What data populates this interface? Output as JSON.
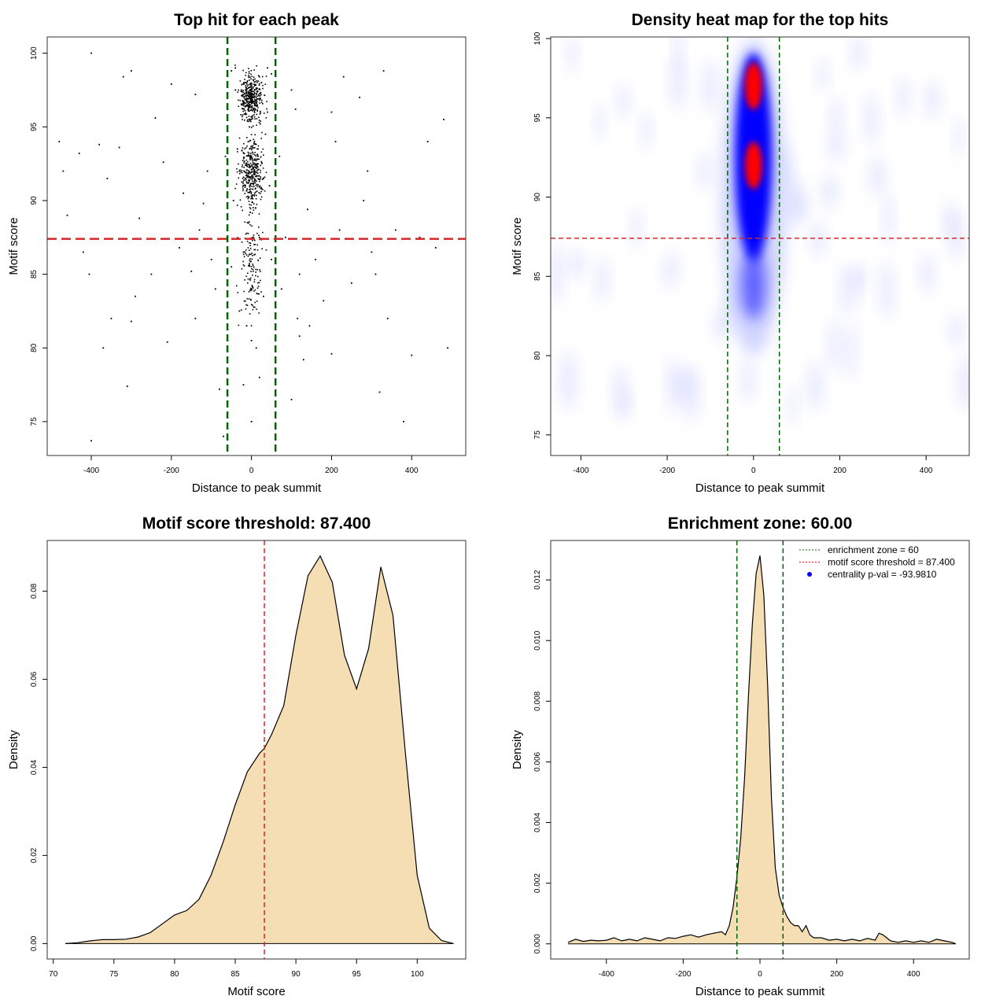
{
  "chart_data": [
    {
      "type": "scatter",
      "title": "Top hit for each peak",
      "xlabel": "Distance to peak summit",
      "ylabel": "Motif score",
      "xlim": [
        -510,
        535
      ],
      "ylim": [
        72.7,
        101.1
      ],
      "xticks": [
        -400,
        -200,
        0,
        200,
        400
      ],
      "yticks": [
        75,
        80,
        85,
        90,
        95,
        100
      ],
      "xtick_labels": [
        "-400",
        "-200",
        "0",
        "200",
        "400"
      ],
      "ytick_labels": [
        "75",
        "80",
        "85",
        "90",
        "95",
        "100"
      ],
      "threshold_score": 87.4,
      "enrichment_zone": [
        -60,
        60
      ],
      "points": [
        [
          -400,
          100
        ],
        [
          -300,
          98.8
        ],
        [
          -320,
          98.4
        ],
        [
          -200,
          97.9
        ],
        [
          -140,
          97.2
        ],
        [
          -40,
          99.0
        ],
        [
          40,
          99.0
        ],
        [
          -480,
          94
        ],
        [
          -470,
          92
        ],
        [
          -460,
          89
        ],
        [
          -430,
          93.2
        ],
        [
          -420,
          86.5
        ],
        [
          -405,
          85
        ],
        [
          -380,
          93.8
        ],
        [
          -360,
          91.5
        ],
        [
          -350,
          82
        ],
        [
          -330,
          93.6
        ],
        [
          -300,
          81.8
        ],
        [
          -290,
          83.5
        ],
        [
          -280,
          88.8
        ],
        [
          -240,
          95.6
        ],
        [
          -220,
          92.6
        ],
        [
          -210,
          80.4
        ],
        [
          -180,
          86.8
        ],
        [
          -150,
          85.2
        ],
        [
          -140,
          82
        ],
        [
          -120,
          89.8
        ],
        [
          -110,
          92
        ],
        [
          -100,
          86
        ],
        [
          -80,
          77.2
        ],
        [
          -70,
          74
        ],
        [
          -400,
          73.7
        ],
        [
          -310,
          77.4
        ],
        [
          -370,
          80
        ],
        [
          100,
          97.5
        ],
        [
          110,
          96.2
        ],
        [
          115,
          82
        ],
        [
          120,
          80.8
        ],
        [
          130,
          79.2
        ],
        [
          140,
          89.4
        ],
        [
          160,
          86
        ],
        [
          180,
          83.2
        ],
        [
          200,
          96
        ],
        [
          210,
          94
        ],
        [
          220,
          88
        ],
        [
          230,
          98.4
        ],
        [
          250,
          84.4
        ],
        [
          270,
          97
        ],
        [
          280,
          90
        ],
        [
          290,
          92
        ],
        [
          300,
          86.5
        ],
        [
          310,
          85
        ],
        [
          320,
          77
        ],
        [
          330,
          98.8
        ],
        [
          340,
          82
        ],
        [
          360,
          88
        ],
        [
          380,
          75
        ],
        [
          400,
          79.5
        ],
        [
          420,
          87.5
        ],
        [
          440,
          94
        ],
        [
          460,
          86.8
        ],
        [
          480,
          95.5
        ],
        [
          490,
          80
        ],
        [
          100,
          76.5
        ],
        [
          200,
          79.6
        ],
        [
          120,
          85
        ],
        [
          145,
          81.5
        ],
        [
          60,
          89
        ],
        [
          75,
          84
        ],
        [
          -60,
          77.8
        ],
        [
          -90,
          84
        ],
        [
          -250,
          85
        ],
        [
          -170,
          90.5
        ],
        [
          -130,
          88
        ],
        [
          -65,
          93
        ],
        [
          70,
          93
        ],
        [
          85,
          87.5
        ],
        [
          50,
          86
        ],
        [
          -50,
          85.5
        ],
        [
          20,
          78
        ],
        [
          -20,
          77.5
        ],
        [
          0,
          75
        ],
        [
          0,
          80.5
        ],
        [
          -30,
          82.5
        ],
        [
          30,
          83.5
        ],
        [
          -15,
          91
        ],
        [
          15,
          92.5
        ],
        [
          -5,
          95
        ],
        [
          5,
          97
        ],
        [
          -25,
          96.5
        ],
        [
          25,
          98
        ],
        [
          -10,
          88.5
        ],
        [
          10,
          89.5
        ],
        [
          -35,
          93.5
        ],
        [
          35,
          94.5
        ],
        [
          -45,
          90
        ],
        [
          45,
          91
        ],
        [
          -20,
          86.5
        ],
        [
          20,
          87.5
        ],
        [
          0,
          84
        ],
        [
          -12,
          81.5
        ],
        [
          12,
          80
        ],
        [
          -40,
          97.5
        ],
        [
          40,
          96
        ],
        [
          -30,
          92
        ],
        [
          30,
          91.5
        ],
        [
          0,
          93
        ],
        [
          -8,
          94
        ],
        [
          8,
          90.5
        ],
        [
          -50,
          98.8
        ],
        [
          50,
          98.6
        ],
        [
          -22,
          95.8
        ],
        [
          22,
          95.2
        ],
        [
          -3,
          89.2
        ],
        [
          3,
          92.3
        ]
      ]
    },
    {
      "type": "heatmap",
      "title": "Density heat map for the top hits",
      "xlabel": "Distance to peak summit",
      "ylabel": "Motif score",
      "xlim": [
        -470,
        500
      ],
      "ylim": [
        73.7,
        100.1
      ],
      "xticks": [
        -400,
        -200,
        0,
        200,
        400
      ],
      "yticks": [
        75,
        80,
        85,
        90,
        95,
        100
      ],
      "xtick_labels": [
        "-400",
        "-200",
        "0",
        "200",
        "400"
      ],
      "ytick_labels": [
        "75",
        "80",
        "85",
        "90",
        "95",
        "100"
      ],
      "threshold_score": 87.4,
      "enrichment_zone": [
        -60,
        60
      ],
      "density_peaks": [
        {
          "x": 0,
          "y": 97.0
        },
        {
          "x": 0,
          "y": 92.0
        }
      ]
    },
    {
      "type": "area",
      "title": "Motif score threshold: 87.400",
      "xlabel": "Motif score",
      "ylabel": "Density",
      "xlim": [
        69.5,
        104
      ],
      "ylim": [
        -0.0035,
        0.0915
      ],
      "xticks": [
        70,
        75,
        80,
        85,
        90,
        95,
        100
      ],
      "yticks": [
        0,
        0.02,
        0.04,
        0.06,
        0.08
      ],
      "xtick_labels": [
        "70",
        "75",
        "80",
        "85",
        "90",
        "95",
        "100"
      ],
      "ytick_labels": [
        "0.00",
        "0.02",
        "0.04",
        "0.06",
        "0.08"
      ],
      "threshold": 87.4,
      "x": [
        71,
        72,
        73,
        74,
        75,
        76,
        77,
        78,
        79,
        80,
        81,
        82,
        83,
        84,
        85,
        86,
        87,
        87.4,
        88,
        89,
        90,
        91,
        92,
        93,
        94,
        95,
        96,
        97,
        98,
        99,
        100,
        101,
        102,
        103
      ],
      "y": [
        0.0,
        0.0002,
        0.0006,
        0.0009,
        0.0009,
        0.001,
        0.0015,
        0.0025,
        0.0045,
        0.0065,
        0.0075,
        0.01,
        0.0155,
        0.023,
        0.0315,
        0.039,
        0.0432,
        0.0443,
        0.0475,
        0.054,
        0.07,
        0.0835,
        0.088,
        0.082,
        0.0655,
        0.0578,
        0.067,
        0.0855,
        0.0745,
        0.044,
        0.0155,
        0.0035,
        0.0007,
        0.0
      ]
    },
    {
      "type": "area",
      "title": "Enrichment zone: 60.00",
      "xlabel": "Distance to peak summit",
      "ylabel": "Density",
      "xlim": [
        -545,
        545
      ],
      "ylim": [
        -0.0005,
        0.0133
      ],
      "xticks": [
        -400,
        -200,
        0,
        200,
        400
      ],
      "yticks": [
        0,
        0.002,
        0.004,
        0.006,
        0.008,
        0.01,
        0.012
      ],
      "xtick_labels": [
        "-400",
        "-200",
        "0",
        "200",
        "400"
      ],
      "ytick_labels": [
        "0.000",
        "0.002",
        "0.004",
        "0.006",
        "0.008",
        "0.010",
        "0.012"
      ],
      "enrichment_zone": [
        -60,
        60
      ],
      "x": [
        -500,
        -480,
        -460,
        -440,
        -420,
        -400,
        -380,
        -360,
        -340,
        -320,
        -300,
        -280,
        -260,
        -240,
        -220,
        -200,
        -180,
        -160,
        -140,
        -120,
        -100,
        -90,
        -80,
        -70,
        -60,
        -50,
        -40,
        -30,
        -20,
        -10,
        0,
        10,
        20,
        30,
        40,
        50,
        60,
        70,
        80,
        90,
        100,
        110,
        120,
        130,
        140,
        160,
        180,
        200,
        220,
        240,
        260,
        280,
        300,
        310,
        320,
        340,
        360,
        380,
        400,
        420,
        440,
        460,
        480,
        500,
        510
      ],
      "y": [
        5e-05,
        0.00015,
        8e-05,
        0.00012,
        0.0001,
        0.00012,
        0.0002,
        0.0001,
        0.00015,
        0.0001,
        0.0002,
        0.00015,
        0.0001,
        0.0002,
        0.00018,
        0.00025,
        0.0003,
        0.00022,
        0.0003,
        0.00035,
        0.0004,
        0.0003,
        0.0006,
        0.0012,
        0.0022,
        0.0035,
        0.0055,
        0.0082,
        0.0105,
        0.0122,
        0.0128,
        0.0115,
        0.0085,
        0.0048,
        0.0025,
        0.0016,
        0.0012,
        0.0009,
        0.0007,
        0.0006,
        0.0006,
        0.0004,
        0.0006,
        0.0003,
        0.0002,
        0.0002,
        0.00012,
        0.00015,
        0.0001,
        0.00015,
        0.0001,
        0.00018,
        0.00012,
        0.00035,
        0.0003,
        0.0001,
        5e-05,
        0.0001,
        5e-05,
        0.0001,
        5e-05,
        0.00015,
        0.0001,
        5e-05,
        0.0
      ],
      "legend": [
        {
          "label": "enrichment zone = 60",
          "color": "#006400",
          "marker": "dotted-line"
        },
        {
          "label": "motif score threshold = 87.400",
          "color": "#ff0000",
          "marker": "dotted-line"
        },
        {
          "label": "centrality p-val = -93.9810",
          "color": "#0000ff",
          "marker": "dot"
        }
      ],
      "legend_position": "top-right"
    }
  ],
  "colors": {
    "threshold_line": "#d62728",
    "zone_line": "#006400",
    "fill": "#f5deb3",
    "heat_low": "#ffffff",
    "heat_mid": "#0000ff",
    "heat_high": "#ff0000"
  }
}
